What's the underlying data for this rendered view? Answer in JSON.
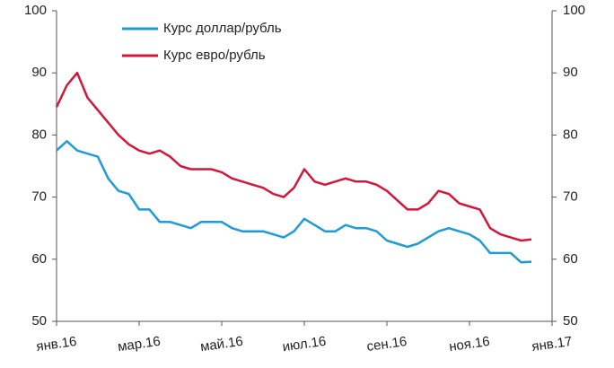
{
  "chart_data": {
    "type": "line",
    "categories": [
      "янв.16",
      null,
      null,
      null,
      null,
      null,
      null,
      null,
      "мар.16",
      null,
      null,
      null,
      null,
      null,
      null,
      null,
      "май.16",
      null,
      null,
      null,
      null,
      null,
      null,
      null,
      "июл.16",
      null,
      null,
      null,
      null,
      null,
      null,
      null,
      "сен.16",
      null,
      null,
      null,
      null,
      null,
      null,
      null,
      "ноя.16",
      null,
      null,
      null,
      null,
      null,
      null,
      null,
      "янв.17"
    ],
    "series": [
      {
        "name": "Курс доллар/рубль",
        "color": "#1f9bd7",
        "axis": "y",
        "values": [
          77.5,
          79,
          77.5,
          77,
          76.5,
          73,
          71,
          70.5,
          68,
          68,
          66,
          66,
          65.5,
          65,
          66,
          66,
          66,
          65,
          64.5,
          64.5,
          64.5,
          64,
          63.5,
          64.5,
          66.5,
          65.5,
          64.5,
          64.5,
          65.5,
          65,
          65,
          64.5,
          63,
          62.5,
          62,
          62.5,
          63.5,
          64.5,
          65,
          64.5,
          64,
          63,
          61,
          61,
          61,
          59.5,
          59.6,
          null,
          null
        ]
      },
      {
        "name": "Курс евро/рубль",
        "color": "#d2173a",
        "axis": "y",
        "values": [
          84.5,
          88,
          90,
          86,
          84,
          82,
          80,
          78.5,
          77.5,
          77,
          77.5,
          76.5,
          75,
          74.5,
          74.5,
          74.5,
          74,
          73,
          72.5,
          72,
          71.5,
          70.5,
          70,
          71.5,
          74.5,
          72.5,
          72,
          72.5,
          73,
          72.5,
          72.5,
          72,
          71,
          69.5,
          68,
          68,
          69,
          71,
          70.5,
          69,
          68.5,
          68,
          65,
          64,
          63.5,
          63,
          63.2,
          null,
          null
        ]
      }
    ],
    "ylim": [
      50,
      100
    ],
    "yticks": [
      50,
      60,
      70,
      80,
      90,
      100
    ],
    "y2lim": [
      50,
      100
    ],
    "y2ticks": [
      50,
      60,
      70,
      80,
      90,
      100
    ],
    "legend": "top"
  }
}
